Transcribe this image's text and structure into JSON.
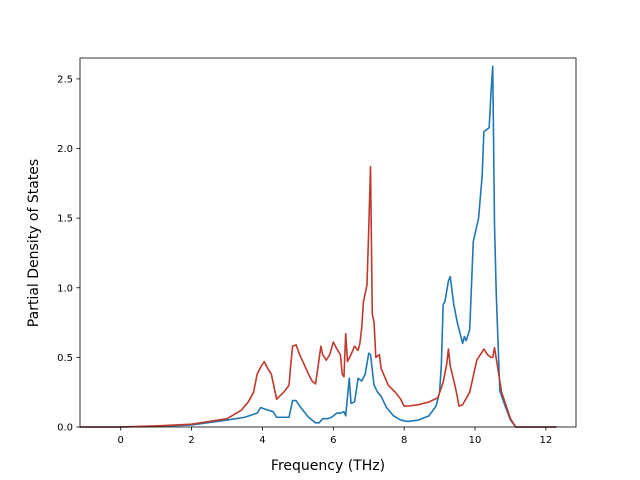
{
  "chart_data": {
    "type": "line",
    "xlabel": "Frequency (THz)",
    "ylabel": "Partial Density of States",
    "xlim": [
      -1.15,
      12.85
    ],
    "ylim": [
      0,
      2.65
    ],
    "xticks": [
      0,
      2,
      4,
      6,
      8,
      10,
      12
    ],
    "yticks": [
      0.0,
      0.5,
      1.0,
      1.5,
      2.0,
      2.5
    ],
    "xtick_labels": [
      "0",
      "2",
      "4",
      "6",
      "8",
      "10",
      "12"
    ],
    "ytick_labels": [
      "0.0",
      "0.5",
      "1.0",
      "1.5",
      "2.0",
      "2.5"
    ],
    "grid": false,
    "series": [
      {
        "color": "#1f77b4",
        "x": [
          -1.15,
          0,
          1,
          2,
          3,
          3.5,
          3.85,
          3.95,
          4.05,
          4.3,
          4.4,
          4.6,
          4.75,
          4.85,
          4.95,
          5.05,
          5.3,
          5.5,
          5.6,
          5.7,
          5.85,
          5.95,
          6.1,
          6.2,
          6.3,
          6.35,
          6.45,
          6.5,
          6.6,
          6.7,
          6.8,
          6.9,
          7.0,
          7.05,
          7.15,
          7.25,
          7.35,
          7.5,
          7.7,
          7.9,
          8.1,
          8.4,
          8.7,
          8.9,
          9.0,
          9.05,
          9.1,
          9.15,
          9.25,
          9.3,
          9.4,
          9.5,
          9.6,
          9.65,
          9.7,
          9.75,
          9.85,
          9.95,
          10.1,
          10.2,
          10.25,
          10.3,
          10.4,
          10.45,
          10.5,
          10.55,
          10.6,
          10.7,
          10.85,
          11.0,
          11.15,
          12.3
        ],
        "values": [
          0,
          0,
          0.005,
          0.015,
          0.05,
          0.07,
          0.1,
          0.14,
          0.13,
          0.11,
          0.07,
          0.07,
          0.07,
          0.19,
          0.19,
          0.15,
          0.07,
          0.03,
          0.03,
          0.06,
          0.06,
          0.07,
          0.1,
          0.1,
          0.11,
          0.08,
          0.35,
          0.17,
          0.18,
          0.35,
          0.33,
          0.38,
          0.53,
          0.52,
          0.3,
          0.25,
          0.22,
          0.14,
          0.08,
          0.05,
          0.04,
          0.05,
          0.08,
          0.15,
          0.25,
          0.45,
          0.88,
          0.9,
          1.05,
          1.08,
          0.88,
          0.75,
          0.65,
          0.6,
          0.65,
          0.62,
          0.7,
          1.33,
          1.5,
          1.8,
          2.12,
          2.13,
          2.15,
          2.4,
          2.59,
          1.45,
          0.95,
          0.26,
          0.15,
          0.05,
          0,
          0
        ]
      },
      {
        "color": "#c0392b",
        "x": [
          -1.15,
          0,
          1,
          2,
          3,
          3.4,
          3.6,
          3.75,
          3.85,
          3.95,
          4.05,
          4.15,
          4.25,
          4.4,
          4.6,
          4.75,
          4.8,
          4.85,
          4.95,
          5.05,
          5.3,
          5.4,
          5.5,
          5.65,
          5.7,
          5.8,
          5.9,
          6.0,
          6.1,
          6.2,
          6.25,
          6.3,
          6.35,
          6.4,
          6.5,
          6.6,
          6.7,
          6.75,
          6.8,
          6.85,
          6.95,
          7.0,
          7.05,
          7.1,
          7.15,
          7.2,
          7.3,
          7.35,
          7.45,
          7.55,
          7.75,
          7.9,
          8.0,
          8.1,
          8.4,
          8.7,
          8.95,
          9.1,
          9.2,
          9.25,
          9.3,
          9.45,
          9.55,
          9.65,
          9.85,
          10.05,
          10.25,
          10.35,
          10.45,
          10.5,
          10.55,
          10.75,
          11.0,
          11.15,
          12.3
        ],
        "values": [
          0,
          0,
          0.008,
          0.02,
          0.06,
          0.12,
          0.18,
          0.25,
          0.38,
          0.43,
          0.47,
          0.42,
          0.38,
          0.2,
          0.25,
          0.3,
          0.45,
          0.58,
          0.59,
          0.52,
          0.38,
          0.33,
          0.31,
          0.58,
          0.52,
          0.48,
          0.52,
          0.61,
          0.56,
          0.52,
          0.38,
          0.36,
          0.67,
          0.47,
          0.52,
          0.58,
          0.55,
          0.6,
          0.71,
          0.9,
          1.02,
          1.42,
          1.87,
          0.81,
          0.75,
          0.5,
          0.52,
          0.42,
          0.36,
          0.3,
          0.25,
          0.2,
          0.15,
          0.15,
          0.16,
          0.18,
          0.21,
          0.32,
          0.45,
          0.56,
          0.44,
          0.28,
          0.15,
          0.16,
          0.25,
          0.48,
          0.56,
          0.52,
          0.5,
          0.5,
          0.57,
          0.25,
          0.06,
          0,
          0
        ]
      }
    ]
  }
}
